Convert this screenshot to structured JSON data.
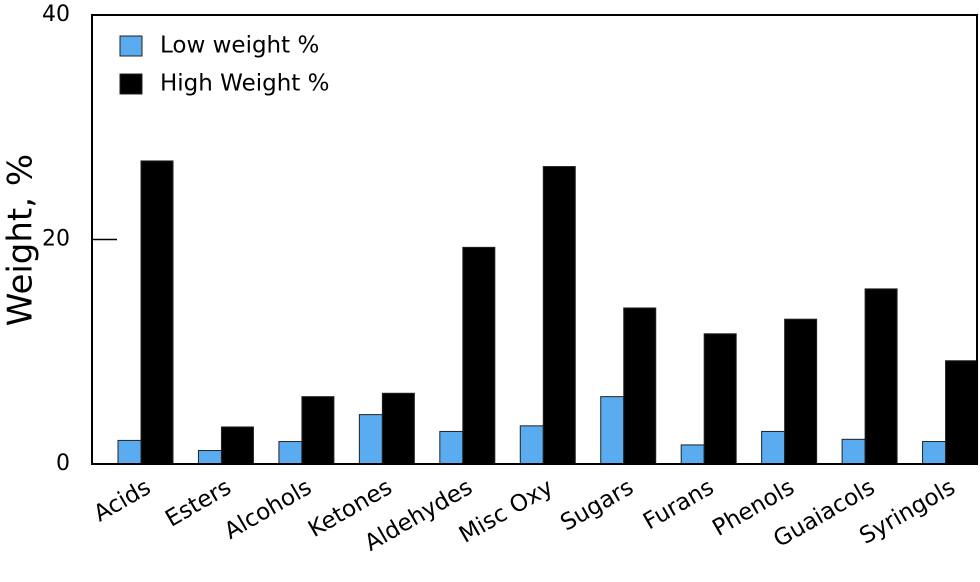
{
  "chart_data": {
    "type": "bar",
    "y_label": "Weight, %",
    "categories": [
      "Acids",
      "Esters",
      "Alcohols",
      "Ketones",
      "Aldehydes",
      "Misc Oxy",
      "Sugars",
      "Furans",
      "Phenols",
      "Guaiacols",
      "Syringols"
    ],
    "series": [
      {
        "name": "Low weight %",
        "color": "#5aabf0",
        "values": [
          2.1,
          1.2,
          2.0,
          4.4,
          2.9,
          3.4,
          6.0,
          1.7,
          2.9,
          2.2,
          2.0
        ]
      },
      {
        "name": "High Weight %",
        "color": "#000000",
        "values": [
          27.0,
          3.3,
          6.0,
          6.3,
          19.3,
          26.5,
          13.9,
          11.6,
          12.9,
          15.6,
          9.2
        ]
      }
    ],
    "ylim": [
      0,
      40
    ],
    "yticks": [
      0,
      20,
      40
    ],
    "legend": "top-left"
  }
}
